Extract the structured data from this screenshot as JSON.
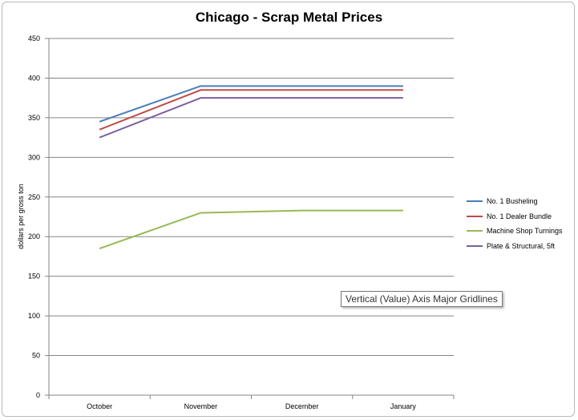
{
  "chart_data": {
    "type": "line",
    "title": "Chicago - Scrap Metal Prices",
    "xlabel": "",
    "ylabel": "dollars per gross ton",
    "categories": [
      "October",
      "November",
      "December",
      "January"
    ],
    "ylim": [
      0,
      450
    ],
    "yticks": [
      0,
      50,
      100,
      150,
      200,
      250,
      300,
      350,
      400,
      450
    ],
    "grid": "horizontal major",
    "legend_position": "right",
    "series": [
      {
        "name": "No. 1 Busheling",
        "color": "#4a7ebb",
        "values": [
          345,
          390,
          390,
          390
        ]
      },
      {
        "name": "No. 1 Dealer Bundle",
        "color": "#be4b48",
        "values": [
          335,
          385,
          385,
          385
        ]
      },
      {
        "name": "Machine Shop Turnings",
        "color": "#98b954",
        "values": [
          185,
          230,
          233,
          233
        ]
      },
      {
        "name": "Plate & Structural, 5ft",
        "color": "#7d5fa0",
        "values": [
          325,
          375,
          375,
          375
        ]
      }
    ]
  },
  "tooltip": {
    "text": "Vertical (Value) Axis Major Gridlines"
  }
}
